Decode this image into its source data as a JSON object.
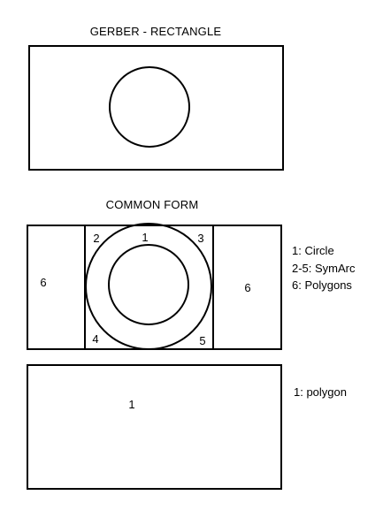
{
  "diagram": {
    "sections": {
      "gerber": {
        "title": "GERBER - RECTANGLE"
      },
      "common": {
        "title": "COMMON FORM",
        "region_labels": {
          "circle": "1",
          "symarc_top_left": "2",
          "symarc_top_right": "3",
          "symarc_bottom_left": "4",
          "symarc_bottom_right": "5",
          "polygon_left": "6",
          "polygon_right": "6"
        },
        "legend": [
          "1: Circle",
          "2-5: SymArc",
          "6: Polygons"
        ]
      },
      "polygon": {
        "region_label": "1",
        "legend": [
          "1: polygon"
        ]
      }
    }
  }
}
